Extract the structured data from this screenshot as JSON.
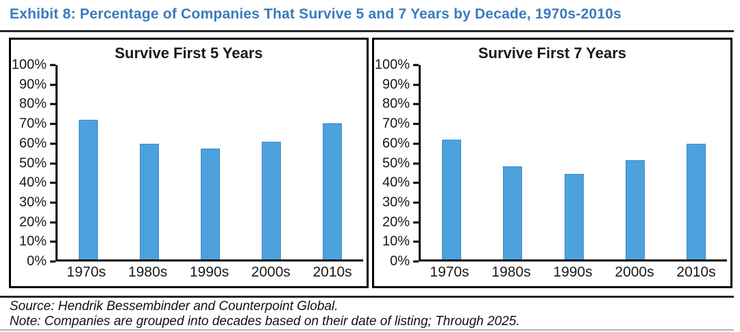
{
  "page": {
    "title": "Exhibit 8: Percentage of Companies That Survive 5 and 7 Years by Decade, 1970s-2010s",
    "title_color": "#3A7ABE"
  },
  "chart_data": [
    {
      "type": "bar",
      "title": "Survive First 5 Years",
      "categories": [
        "1970s",
        "1980s",
        "1990s",
        "2000s",
        "2010s"
      ],
      "values": [
        72,
        59.5,
        57,
        60.5,
        70
      ],
      "xlabel": "",
      "ylabel": "",
      "ylim": [
        0,
        100
      ],
      "ytick_step": 10,
      "ytick_suffix": "%",
      "bar_color": "#4DA1DC",
      "grid": false,
      "legend": "none"
    },
    {
      "type": "bar",
      "title": "Survive First 7 Years",
      "categories": [
        "1970s",
        "1980s",
        "1990s",
        "2000s",
        "2010s"
      ],
      "values": [
        61.5,
        48,
        44,
        51,
        59.5
      ],
      "xlabel": "",
      "ylabel": "",
      "ylim": [
        0,
        100
      ],
      "ytick_step": 10,
      "ytick_suffix": "%",
      "bar_color": "#4DA1DC",
      "grid": false,
      "legend": "none"
    }
  ],
  "footer": {
    "source": "Source: Hendrik Bessembinder and Counterpoint Global.",
    "note": "Note: Companies are grouped into decades based on their date of listing; Through 2025."
  }
}
